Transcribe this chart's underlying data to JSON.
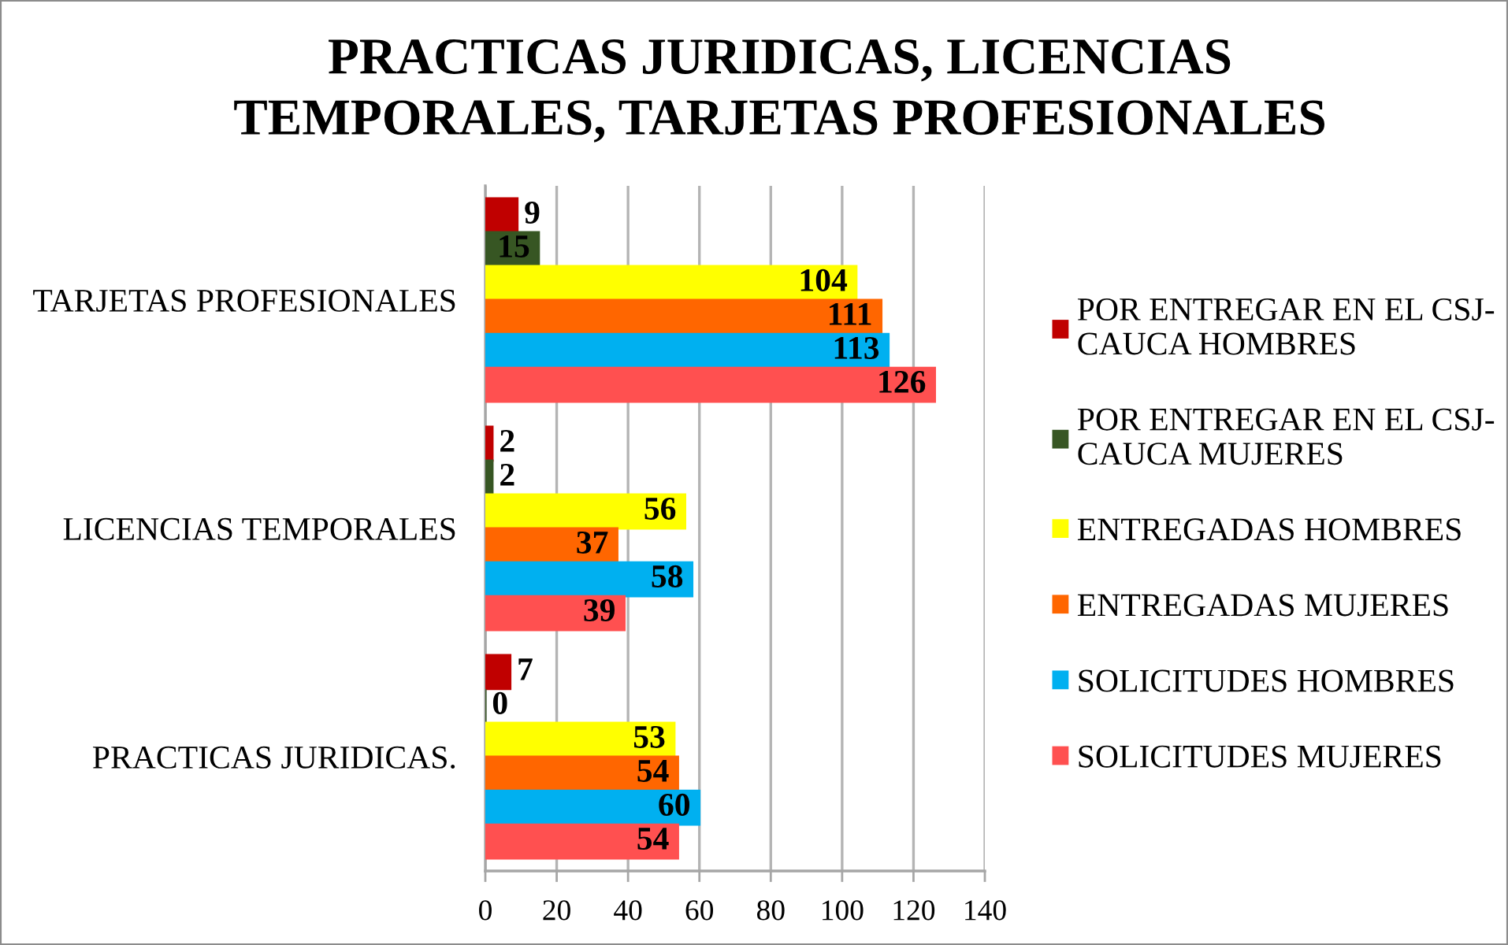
{
  "chart_data": {
    "type": "bar",
    "orientation": "horizontal",
    "title": "PRACTICAS JURIDICAS, LICENCIAS TEMPORALES, TARJETAS PROFESIONALES",
    "categories": [
      "TARJETAS PROFESIONALES",
      "LICENCIAS TEMPORALES",
      "PRACTICAS JURIDICAS."
    ],
    "series": [
      {
        "name": "POR ENTREGAR EN EL CSJ-CAUCA HOMBRES",
        "color": "#c00000",
        "values": [
          9,
          2,
          7
        ]
      },
      {
        "name": "POR ENTREGAR EN EL CSJ-CAUCA MUJERES",
        "color": "#375623",
        "values": [
          15,
          2,
          0
        ]
      },
      {
        "name": "ENTREGADAS HOMBRES",
        "color": "#ffff00",
        "values": [
          104,
          56,
          53
        ]
      },
      {
        "name": "ENTREGADAS MUJERES",
        "color": "#ff6600",
        "values": [
          111,
          37,
          54
        ]
      },
      {
        "name": "SOLICITUDES HOMBRES",
        "color": "#00b0f0",
        "values": [
          113,
          58,
          60
        ]
      },
      {
        "name": "SOLICITUDES MUJERES",
        "color": "#ff5050",
        "values": [
          126,
          39,
          54
        ]
      }
    ],
    "xlim": [
      0,
      140
    ],
    "xticks": [
      0,
      20,
      40,
      60,
      80,
      100,
      120,
      140
    ],
    "grid": "x",
    "legend": "right",
    "data_labels": true
  }
}
